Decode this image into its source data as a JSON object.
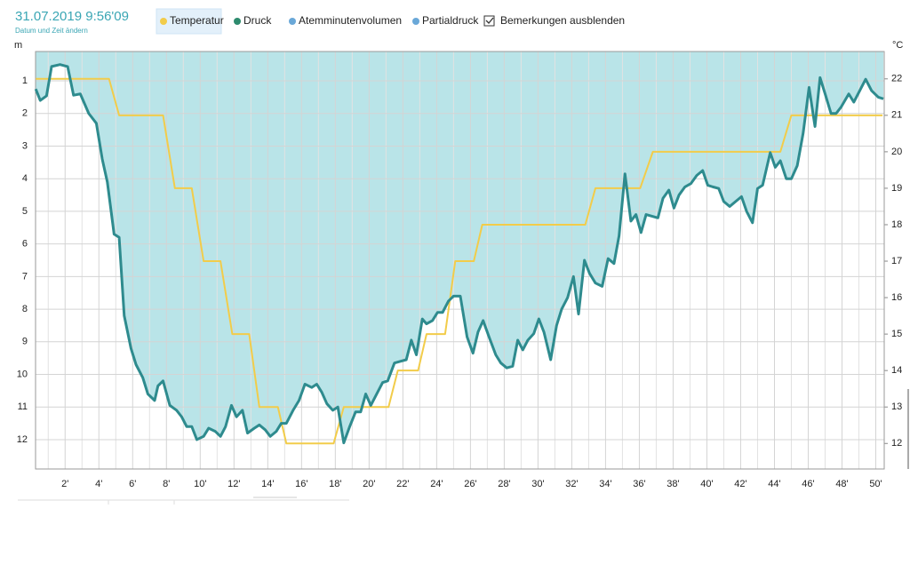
{
  "header": {
    "datetime": "31.07.2019 9:56'09",
    "change_link": "Datum und Zeit ändern"
  },
  "toolbar": {
    "items": [
      "Temperatur",
      "Druck",
      "Atemminutenvolumen",
      "Partialdruck"
    ],
    "selected": 0,
    "checkbox": {
      "label": "Bemerkungen ausblenden",
      "checked": true
    }
  },
  "chart_data": {
    "type": "line",
    "y_label": "m",
    "y2_label": "°C",
    "xlim": [
      0.25,
      50.5
    ],
    "ylim": [
      0.1,
      12.9
    ],
    "y_reversed": true,
    "y2lim": [
      11.3,
      22.75
    ],
    "grid": true,
    "xticks": [
      {
        "value": 2,
        "label": "2'"
      },
      {
        "value": 4,
        "label": "4'"
      },
      {
        "value": 6,
        "label": "6'"
      },
      {
        "value": 8,
        "label": "8'"
      },
      {
        "value": 10,
        "label": "10'"
      },
      {
        "value": 12,
        "label": "12'"
      },
      {
        "value": 14,
        "label": "14'"
      },
      {
        "value": 16,
        "label": "16'"
      },
      {
        "value": 18,
        "label": "18'"
      },
      {
        "value": 20,
        "label": "20'"
      },
      {
        "value": 22,
        "label": "22'"
      },
      {
        "value": 24,
        "label": "24'"
      },
      {
        "value": 26,
        "label": "26'"
      },
      {
        "value": 28,
        "label": "28'"
      },
      {
        "value": 30,
        "label": "30'"
      },
      {
        "value": 32,
        "label": "32'"
      },
      {
        "value": 34,
        "label": "34'"
      },
      {
        "value": 36,
        "label": "36'"
      },
      {
        "value": 38,
        "label": "38'"
      },
      {
        "value": 40,
        "label": "40'"
      },
      {
        "value": 42,
        "label": "42'"
      },
      {
        "value": 44,
        "label": "44'"
      },
      {
        "value": 46,
        "label": "46'"
      },
      {
        "value": 48,
        "label": "48'"
      },
      {
        "value": 50,
        "label": "50'"
      }
    ],
    "yticks": [
      1,
      2,
      3,
      4,
      5,
      6,
      7,
      8,
      9,
      10,
      11,
      12
    ],
    "y2ticks": [
      12,
      13,
      14,
      15,
      16,
      17,
      18,
      19,
      20,
      21,
      22
    ],
    "series": [
      {
        "color": "#2e8b8e",
        "fill": "#b9e4e8",
        "x": [
          0.26,
          0.53,
          0.9,
          1.2,
          1.7,
          2.15,
          2.5,
          2.9,
          3.4,
          3.85,
          4.2,
          4.5,
          4.9,
          5.2,
          5.5,
          5.9,
          6.2,
          6.6,
          6.9,
          7.3,
          7.5,
          7.8,
          8.2,
          8.6,
          8.9,
          9.2,
          9.5,
          9.8,
          10.2,
          10.5,
          10.9,
          11.2,
          11.5,
          11.85,
          12.15,
          12.5,
          12.8,
          13.2,
          13.5,
          13.85,
          14.15,
          14.5,
          14.8,
          15.1,
          15.5,
          15.85,
          16.2,
          16.6,
          16.9,
          17.2,
          17.5,
          17.85,
          18.15,
          18.5,
          18.85,
          19.2,
          19.5,
          19.8,
          20.1,
          20.5,
          20.8,
          21.1,
          21.5,
          21.85,
          22.2,
          22.5,
          22.8,
          23.15,
          23.4,
          23.75,
          24.05,
          24.35,
          24.7,
          25.0,
          25.4,
          25.8,
          26.15,
          26.45,
          26.75,
          27.1,
          27.5,
          27.8,
          28.15,
          28.5,
          28.8,
          29.1,
          29.4,
          29.75,
          30.05,
          30.35,
          30.75,
          31.1,
          31.4,
          31.75,
          32.1,
          32.4,
          32.75,
          33.05,
          33.4,
          33.8,
          34.15,
          34.5,
          34.8,
          35.15,
          35.5,
          35.8,
          36.1,
          36.4,
          36.75,
          37.1,
          37.4,
          37.75,
          38.05,
          38.35,
          38.7,
          39.05,
          39.4,
          39.75,
          40.05,
          40.35,
          40.7,
          41.0,
          41.35,
          41.7,
          42.05,
          42.35,
          42.7,
          43.0,
          43.3,
          43.75,
          44.05,
          44.35,
          44.7,
          45.0,
          45.35,
          45.7,
          46.05,
          46.4,
          46.7,
          47.0,
          47.35,
          47.65,
          47.95,
          48.4,
          48.7,
          49.05,
          49.4,
          49.75,
          50.15,
          50.45
        ],
        "values": [
          1.25,
          1.6,
          1.46,
          0.56,
          0.5,
          0.56,
          1.44,
          1.4,
          2.0,
          2.3,
          3.4,
          4.1,
          5.7,
          5.8,
          8.2,
          9.2,
          9.7,
          10.1,
          10.6,
          10.8,
          10.35,
          10.2,
          10.95,
          11.1,
          11.3,
          11.6,
          11.6,
          12.0,
          11.9,
          11.65,
          11.75,
          11.9,
          11.6,
          10.95,
          11.3,
          11.1,
          11.8,
          11.65,
          11.55,
          11.7,
          11.9,
          11.75,
          11.5,
          11.5,
          11.1,
          10.8,
          10.3,
          10.4,
          10.3,
          10.55,
          10.9,
          11.1,
          11.0,
          12.1,
          11.6,
          11.15,
          11.15,
          10.6,
          10.95,
          10.55,
          10.25,
          10.2,
          9.65,
          9.6,
          9.55,
          8.95,
          9.4,
          8.3,
          8.45,
          8.35,
          8.1,
          8.1,
          7.75,
          7.6,
          7.6,
          8.85,
          9.35,
          8.7,
          8.35,
          8.85,
          9.4,
          9.65,
          9.8,
          9.75,
          8.95,
          9.25,
          8.95,
          8.75,
          8.3,
          8.7,
          9.55,
          8.5,
          8.0,
          7.65,
          7.0,
          8.15,
          6.5,
          6.9,
          7.2,
          7.3,
          6.45,
          6.6,
          5.75,
          3.85,
          5.3,
          5.1,
          5.65,
          5.1,
          5.15,
          5.2,
          4.6,
          4.35,
          4.9,
          4.5,
          4.25,
          4.15,
          3.9,
          3.75,
          4.2,
          4.25,
          4.3,
          4.7,
          4.85,
          4.7,
          4.55,
          5.0,
          5.35,
          4.3,
          4.2,
          3.2,
          3.65,
          3.45,
          4.0,
          4.0,
          3.6,
          2.6,
          1.2,
          2.4,
          0.9,
          1.4,
          2.0,
          2.0,
          1.8,
          1.4,
          1.65,
          1.3,
          0.95,
          1.3,
          1.5,
          1.55
        ]
      },
      {
        "color": "#f2cc4a",
        "axis": "y2",
        "x": [
          0.26,
          4.6,
          5.2,
          7.8,
          8.5,
          9.5,
          10.2,
          11.2,
          11.9,
          12.9,
          13.5,
          14.6,
          15.1,
          17.9,
          18.5,
          21.15,
          21.7,
          22.9,
          23.4,
          24.5,
          25.1,
          26.2,
          26.7,
          32.8,
          33.4,
          36.05,
          36.8,
          44.35,
          45.0,
          50.4
        ],
        "values": [
          22,
          22,
          21,
          21,
          19,
          19,
          17,
          17,
          15,
          15,
          13,
          13,
          12,
          12,
          13,
          13,
          14,
          14,
          15,
          15,
          17,
          17,
          18,
          18,
          19,
          19,
          20,
          20,
          21,
          21
        ]
      }
    ]
  }
}
